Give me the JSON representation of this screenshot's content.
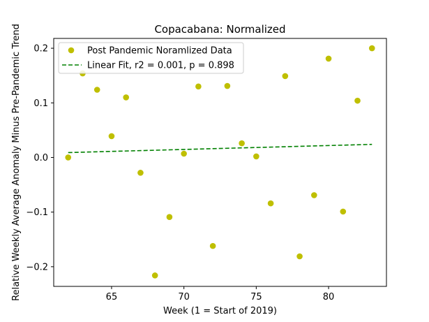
{
  "chart_data": {
    "type": "scatter",
    "title": "Copacabana: Normalized",
    "xlabel": "Week (1 = Start of 2019)",
    "ylabel": "Relative Weekly Average Anomaly Minus Pre-Pandemic Trend",
    "xlim": [
      61.0,
      84.0
    ],
    "ylim": [
      -0.236,
      0.218
    ],
    "x_ticks": [
      65,
      70,
      75,
      80
    ],
    "x_tick_labels": [
      "65",
      "70",
      "75",
      "80"
    ],
    "y_ticks": [
      -0.2,
      -0.1,
      0.0,
      0.1,
      0.2
    ],
    "y_tick_labels": [
      "−0.2",
      "−0.1",
      "0.0",
      "0.1",
      "0.2"
    ],
    "grid": false,
    "legend_position": "top-left",
    "series": [
      {
        "name": "Post Pandemic Noramlized Data",
        "kind": "scatter",
        "color": "#bfbf00",
        "x": [
          62,
          63,
          64,
          65,
          66,
          67,
          68,
          69,
          70,
          71,
          72,
          73,
          74,
          75,
          76,
          77,
          78,
          79,
          80,
          81,
          82,
          83
        ],
        "y": [
          0.0,
          0.154,
          0.124,
          0.039,
          0.11,
          -0.028,
          -0.216,
          -0.109,
          0.007,
          0.13,
          -0.162,
          0.131,
          0.026,
          0.002,
          -0.084,
          0.149,
          -0.181,
          -0.069,
          0.181,
          -0.099,
          0.104,
          0.2
        ]
      },
      {
        "name": "Linear Fit, r2 = 0.001, p = 0.898",
        "kind": "line",
        "style": "dashed",
        "color": "#008000",
        "x": [
          62,
          83
        ],
        "y": [
          0.009,
          0.024
        ]
      }
    ]
  }
}
